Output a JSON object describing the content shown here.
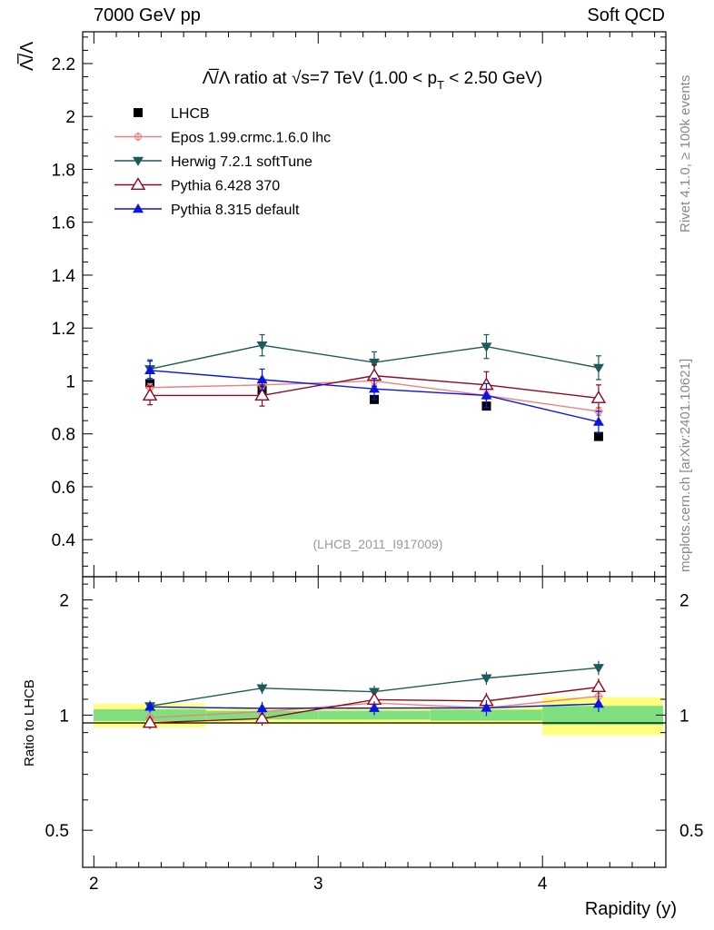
{
  "header": {
    "left": "7000 GeV pp",
    "right": "Soft QCD"
  },
  "side_labels": {
    "rivet": "Rivet 4.1.0, ≥ 100k events",
    "mcplots": "mcplots.cern.ch [arXiv:2401.10621]"
  },
  "chart_data": {
    "type": "line",
    "title_main": "Λ̅/Λ ratio at √s=7 TeV (1.00 < p",
    "title_sub": "T",
    "title_end": " < 2.50 GeV)",
    "ylabel": "Λ̅/Λ",
    "ratio_ylabel": "Ratio to LHCB",
    "xlabel": "Rapidity (y)",
    "watermark": "(LHCB_2011_I917009)",
    "xlim": [
      1.95,
      4.55
    ],
    "ylim": [
      0.26,
      2.32
    ],
    "ratio_ylim": [
      0.4,
      2.3
    ],
    "x_ticks": [
      "2",
      "3",
      "4"
    ],
    "y_ticks": [
      "0.4",
      "0.6",
      "0.8",
      "1",
      "1.2",
      "1.4",
      "1.6",
      "1.8",
      "2",
      "2.2"
    ],
    "ratio_ticks": [
      "0.5",
      "1",
      "2"
    ],
    "x": [
      2.25,
      2.75,
      3.25,
      3.75,
      4.25
    ],
    "data": {
      "name": "LHCB",
      "values": [
        0.99,
        0.965,
        0.93,
        0.905,
        0.79
      ],
      "errors": [
        0.01,
        0.01,
        0.01,
        0.01,
        0.01
      ],
      "band_outer": [
        0.07,
        0.05,
        0.05,
        0.05,
        0.09
      ],
      "band_inner": [
        0.035,
        0.025,
        0.025,
        0.03,
        0.045
      ]
    },
    "series": [
      {
        "name": "Epos 1.99.crmc.1.6.0 lhc",
        "color": "#f08080",
        "marker": "cross",
        "values": [
          0.975,
          0.985,
          1.0,
          0.945,
          0.885
        ],
        "errors": [
          0.015,
          0.015,
          0.015,
          0.015,
          0.015
        ]
      },
      {
        "name": "Herwig 7.2.1 softTune",
        "color": "#1f5a5a",
        "marker": "tri-down",
        "values": [
          1.045,
          1.135,
          1.07,
          1.13,
          1.05
        ],
        "errors": [
          0.035,
          0.04,
          0.04,
          0.045,
          0.045
        ]
      },
      {
        "name": "Pythia 6.428 370",
        "color": "#8b0a1e",
        "marker": "tri-open",
        "values": [
          0.945,
          0.945,
          1.02,
          0.985,
          0.935
        ],
        "errors": [
          0.035,
          0.04,
          0.04,
          0.05,
          0.05
        ]
      },
      {
        "name": "Pythia 8.315 default",
        "color": "#0a14e6",
        "marker": "tri-up",
        "values": [
          1.04,
          1.005,
          0.97,
          0.945,
          0.845
        ],
        "errors": [
          0.035,
          0.04,
          0.04,
          0.045,
          0.04
        ]
      }
    ]
  }
}
